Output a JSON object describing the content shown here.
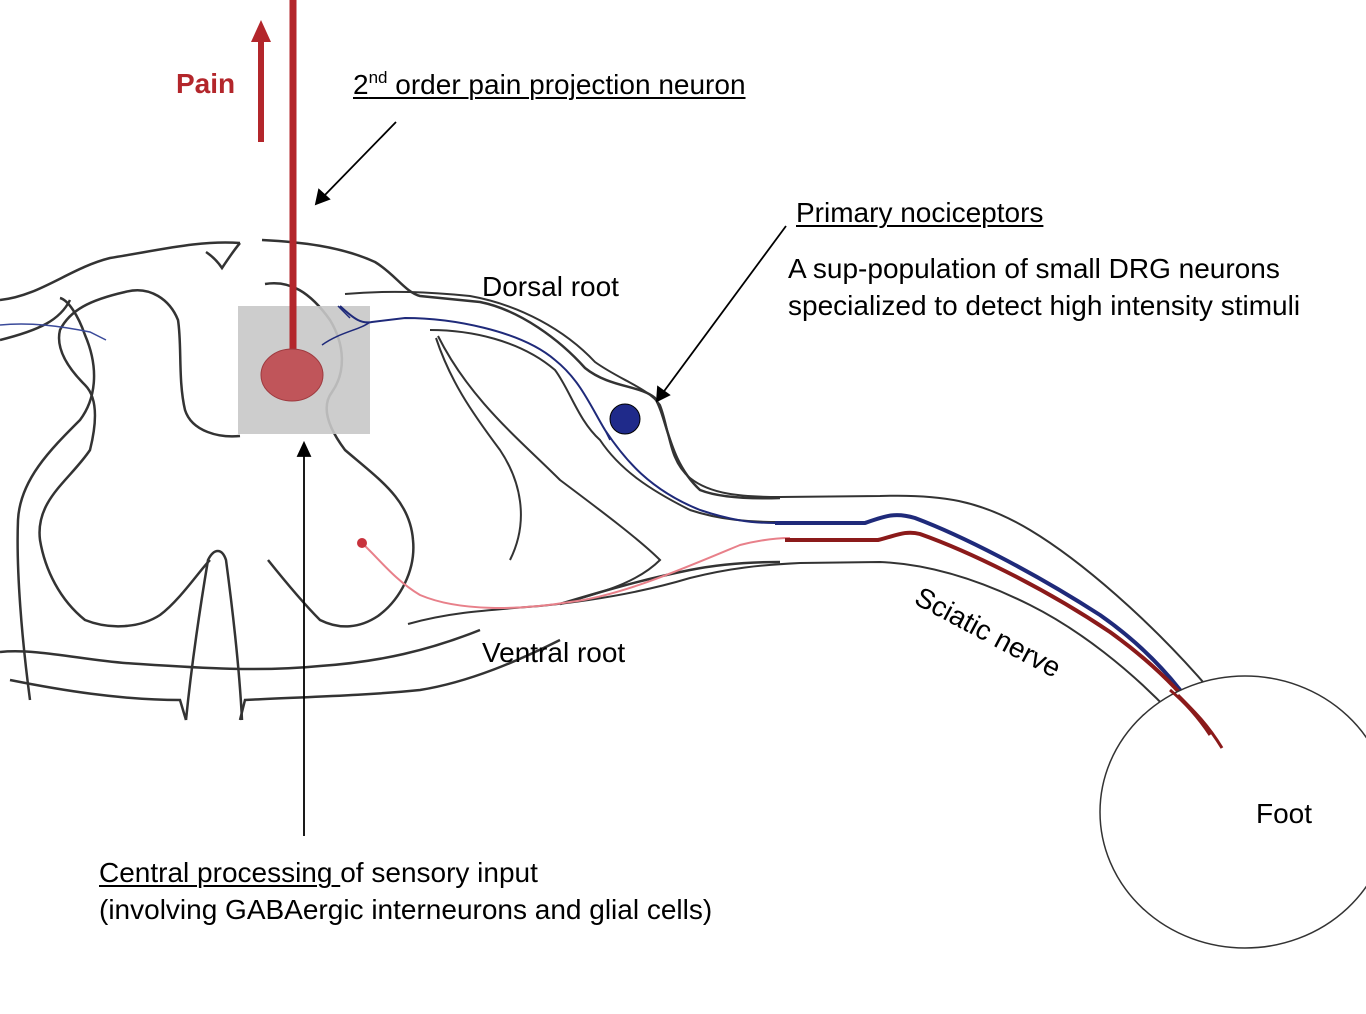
{
  "labels": {
    "pain": "Pain",
    "projection_prefix": "2",
    "projection_sup": "nd",
    "projection_rest": " order pain projection neuron",
    "primary_nociceptors": "Primary nociceptors",
    "nociceptor_desc_line1": "A sup-population of small DRG neurons",
    "nociceptor_desc_line2": "specialized to detect high intensity stimuli",
    "dorsal_root": "Dorsal root",
    "ventral_root": "Ventral root",
    "sciatic_nerve": "Sciatic nerve",
    "foot": "Foot",
    "central_processing_underlined": "Central processing ",
    "central_processing_rest": "of sensory input",
    "central_processing_line2": "(involving GABAergic interneurons and glial cells)"
  },
  "colors": {
    "pain_red": "#b3262b",
    "projection_neuron": "#c0555a",
    "nociceptor_blue": "#1f2a7a",
    "motor_red": "#8b1a1a",
    "motor_light": "#e8808a",
    "highlight_box": "#c8c8c8",
    "outline": "#333333"
  }
}
